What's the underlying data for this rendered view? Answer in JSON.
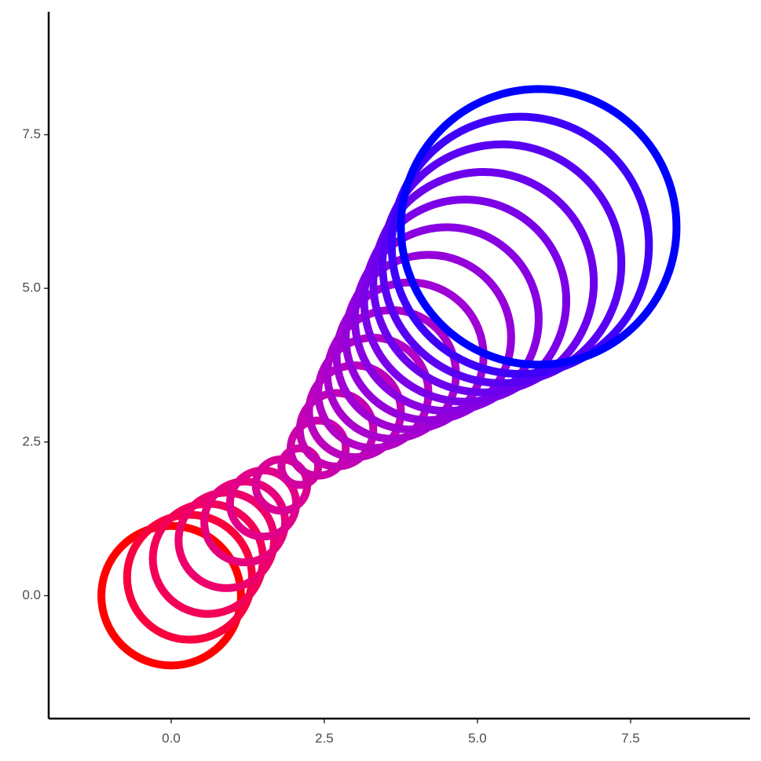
{
  "chart_data": {
    "type": "scatter",
    "x": [
      0,
      0.3,
      0.6,
      0.9,
      1.2,
      1.5,
      1.8,
      2.1,
      2.4,
      2.7,
      3.0,
      3.3,
      3.6,
      3.9,
      4.2,
      4.5,
      4.8,
      5.1,
      5.4,
      5.7,
      6.0
    ],
    "values": [
      0,
      0.3,
      0.6,
      0.9,
      1.2,
      1.5,
      1.8,
      2.1,
      2.4,
      2.7,
      3.0,
      3.3,
      3.6,
      3.9,
      4.2,
      4.5,
      4.8,
      5.1,
      5.4,
      5.7,
      6.0
    ],
    "sizes": [
      1.14,
      1.02,
      0.9,
      0.78,
      0.66,
      0.54,
      0.42,
      0.3,
      0.45,
      0.6,
      0.75,
      0.9,
      1.05,
      1.2,
      1.35,
      1.5,
      1.65,
      1.8,
      1.95,
      2.1,
      2.25
    ],
    "color_low": "#FF0000",
    "color_high": "#0000FF",
    "xlim": [
      -2,
      9.45
    ],
    "ylim": [
      -2,
      9.5
    ],
    "xticks": [
      {
        "value": 0,
        "label": "0.0"
      },
      2.5,
      {
        "value": 5,
        "label": "5.0"
      },
      7.5
    ],
    "yticks": [
      {
        "value": 0,
        "label": "0.0"
      },
      2.5,
      {
        "value": 5,
        "label": "5.0"
      },
      7.5
    ],
    "grid": false
  }
}
